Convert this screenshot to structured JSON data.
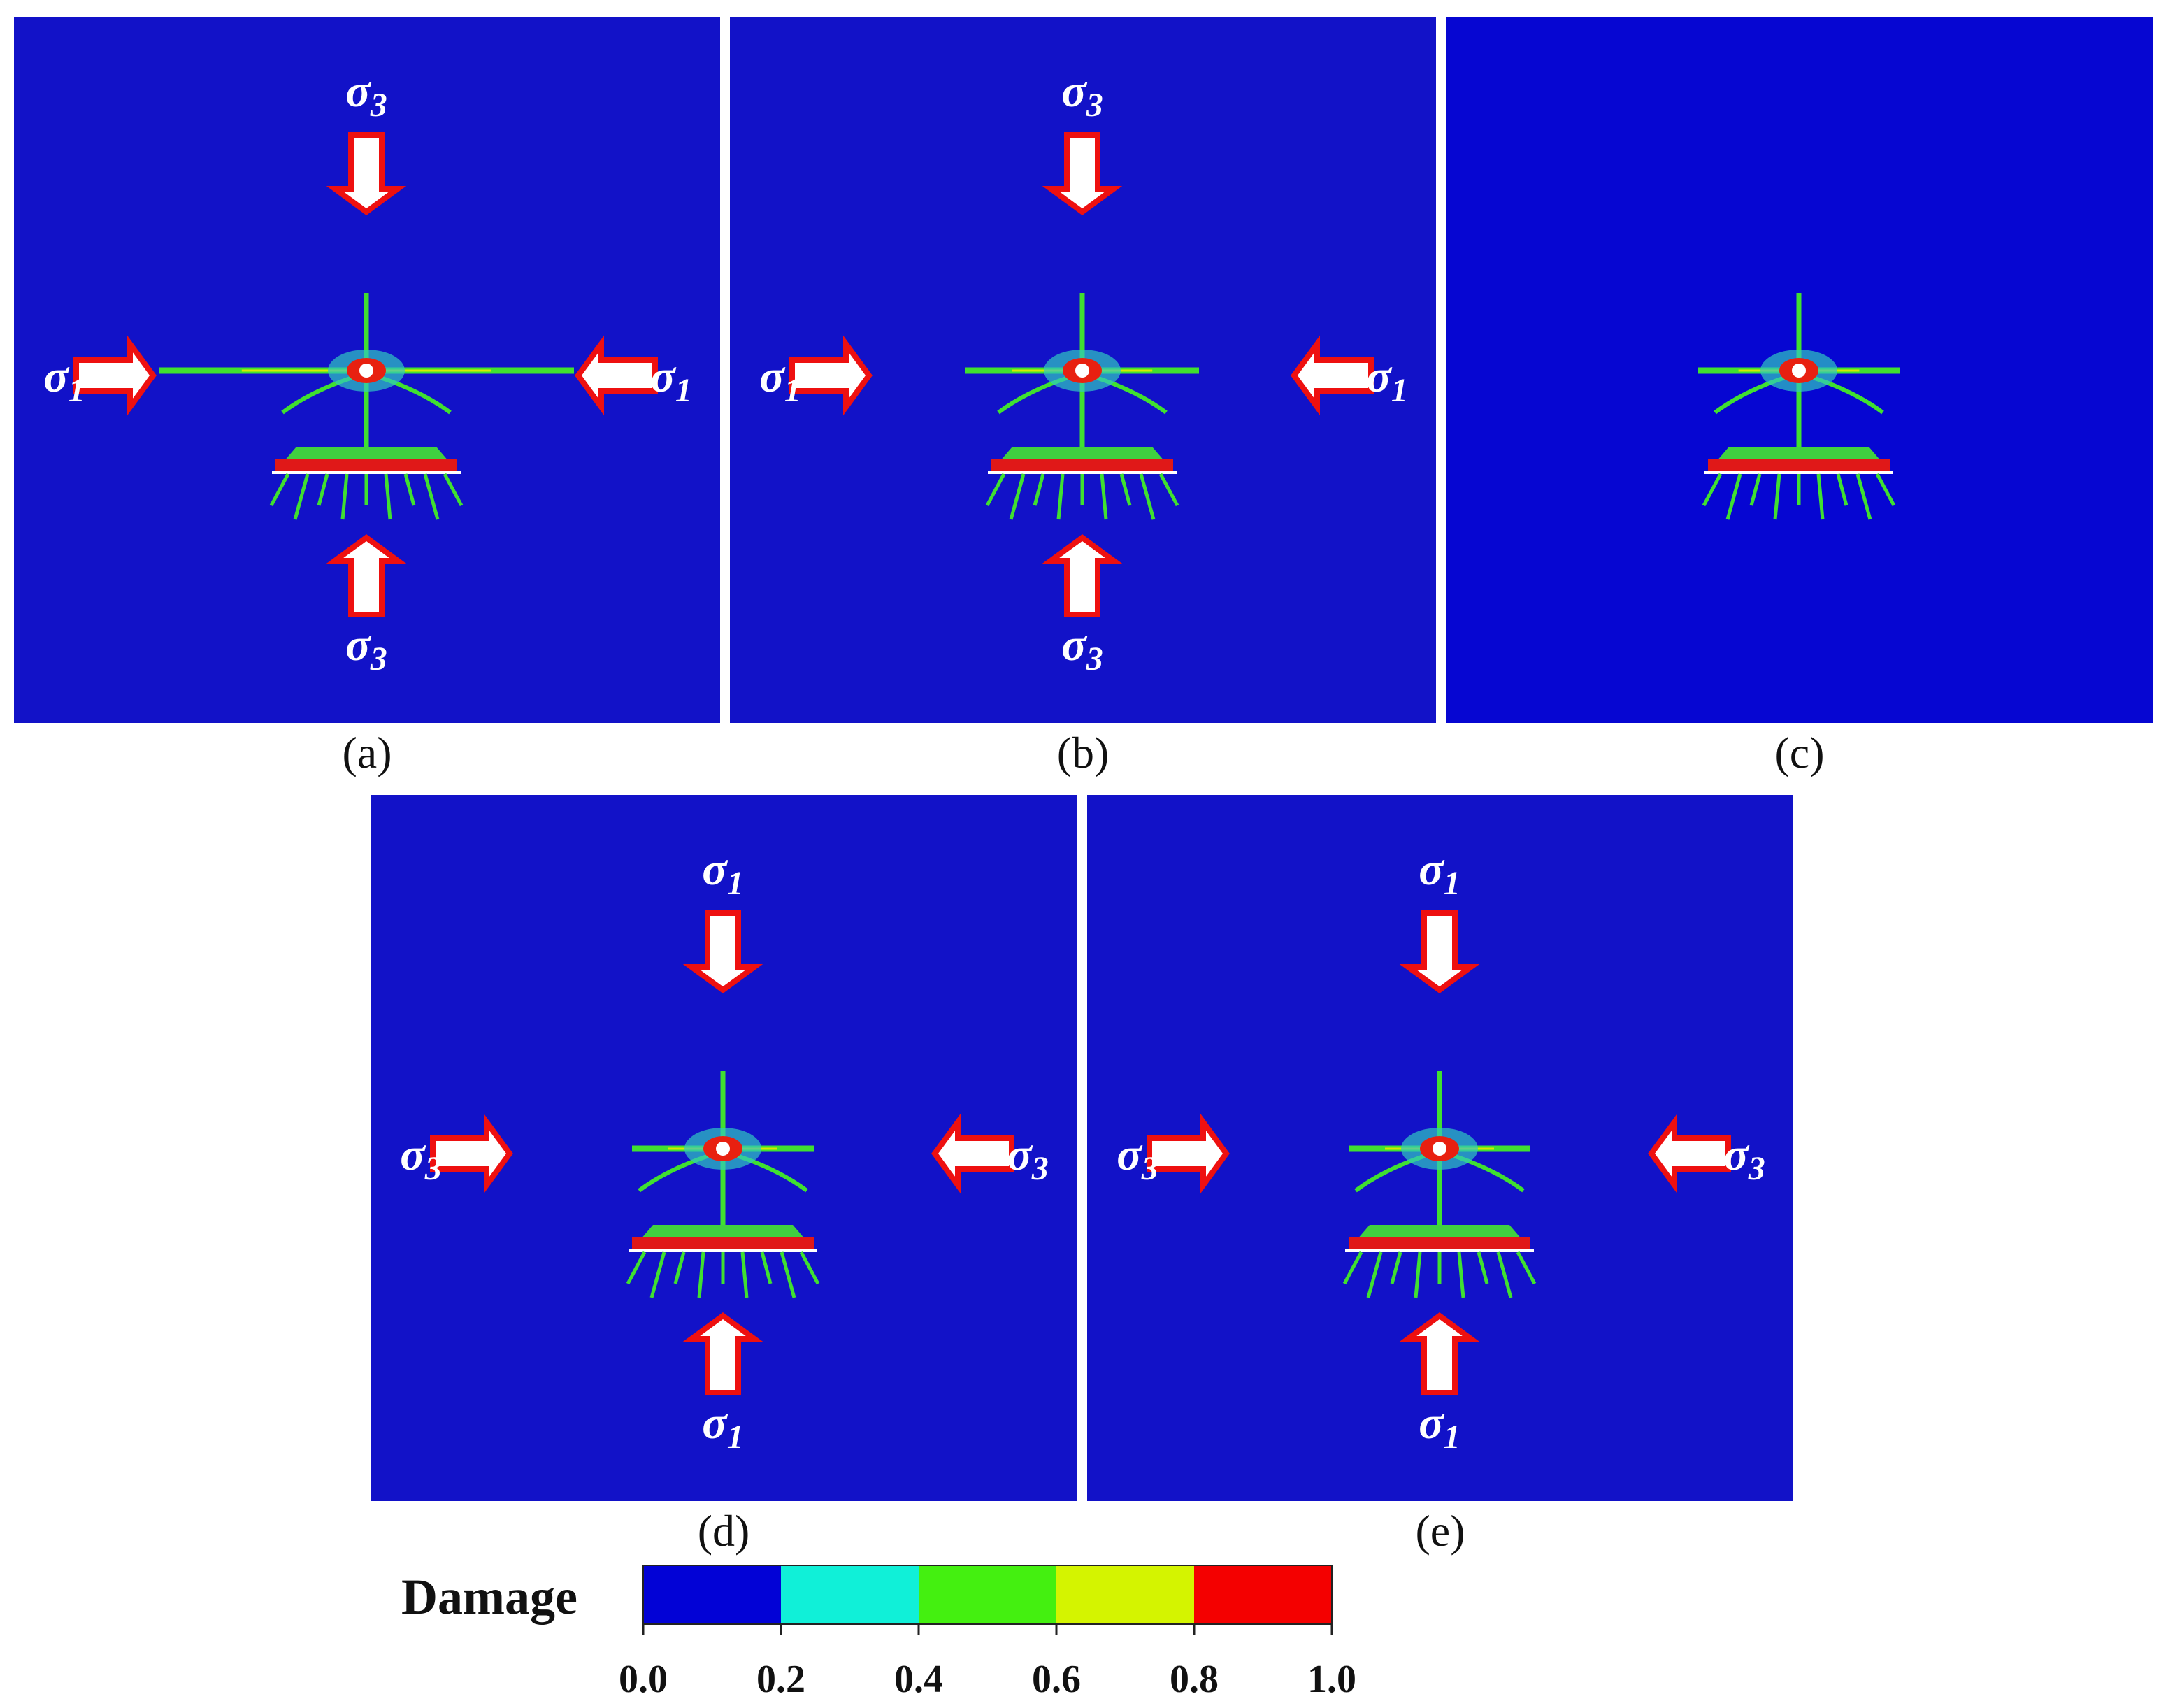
{
  "panels": [
    {
      "caption": "(a)",
      "loads": {
        "top": {
          "symbol": "σ",
          "subscript": "3"
        },
        "bottom": {
          "symbol": "σ",
          "subscript": "3"
        },
        "left": {
          "symbol": "σ",
          "subscript": "1"
        },
        "right": {
          "symbol": "σ",
          "subscript": "1"
        }
      }
    },
    {
      "caption": "(b)",
      "loads": {
        "top": {
          "symbol": "σ",
          "subscript": "3"
        },
        "bottom": {
          "symbol": "σ",
          "subscript": "3"
        },
        "left": {
          "symbol": "σ",
          "subscript": "1"
        },
        "right": {
          "symbol": "σ",
          "subscript": "1"
        }
      }
    },
    {
      "caption": "(c)"
    },
    {
      "caption": "(d)",
      "loads": {
        "top": {
          "symbol": "σ",
          "subscript": "1"
        },
        "bottom": {
          "symbol": "σ",
          "subscript": "1"
        },
        "left": {
          "symbol": "σ",
          "subscript": "3"
        },
        "right": {
          "symbol": "σ",
          "subscript": "3"
        }
      }
    },
    {
      "caption": "(e)",
      "loads": {
        "top": {
          "symbol": "σ",
          "subscript": "1"
        },
        "bottom": {
          "symbol": "σ",
          "subscript": "1"
        },
        "left": {
          "symbol": "σ",
          "subscript": "3"
        },
        "right": {
          "symbol": "σ",
          "subscript": "3"
        }
      }
    }
  ],
  "legend": {
    "title": "Damage",
    "colors": [
      "#0202d6",
      "#10f0d8",
      "#44f010",
      "#d4f400",
      "#f40000"
    ],
    "ticks": [
      "0.0",
      "0.2",
      "0.4",
      "0.6",
      "0.8",
      "1.0"
    ]
  }
}
